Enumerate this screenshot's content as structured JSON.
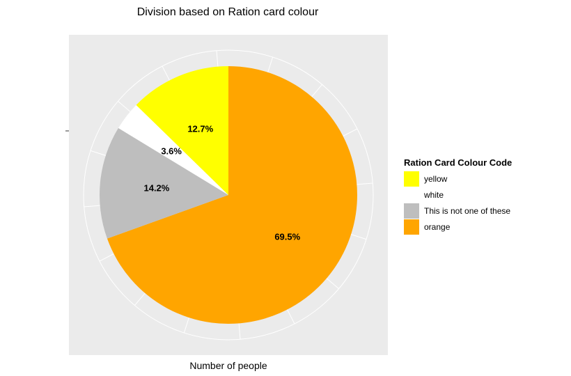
{
  "chart_data": {
    "type": "pie",
    "title": "Division based on Ration card colour",
    "xlabel": "Number of people",
    "ylabel": "",
    "legend": {
      "title": "Ration Card Colour Code",
      "placement": "right"
    },
    "slices": [
      {
        "label": "yellow",
        "value": 12.7,
        "value_label": "12.7%",
        "color": "#FFFF00"
      },
      {
        "label": "white",
        "value": 3.6,
        "value_label": "3.6%",
        "color": "#FFFFFF"
      },
      {
        "label": "This is not one of these",
        "value": 14.2,
        "value_label": "14.2%",
        "color": "#BEBEBE"
      },
      {
        "label": "orange",
        "value": 69.5,
        "value_label": "69.5%",
        "color": "#FFA500"
      }
    ],
    "panel_background": "#EBEBEB",
    "grid": true
  }
}
